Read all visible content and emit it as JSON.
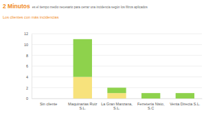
{
  "chart_data": {
    "type": "bar",
    "stacked": true,
    "grid": true,
    "annotations": [
      "2 Minutos",
      "es el tiempo medio necesario para cerrar una incidencia según los filtros aplicados"
    ],
    "title": "Los clientes con más incidencias",
    "categories": [
      "Sin cliente",
      "Maquinarias Ruiz S.L.",
      "La Gran Manzana, S.L.",
      "Ferretería Nisio, S.C",
      "Venta Directa S.L."
    ],
    "series": [
      {
        "color": "#f7e27c",
        "values": [
          0,
          4,
          1,
          0,
          0
        ]
      },
      {
        "color": "#8ed24c",
        "values": [
          0,
          7,
          1,
          1,
          1
        ]
      }
    ],
    "ylim": [
      0,
      12
    ],
    "yticks": [
      0,
      2,
      4,
      6,
      8,
      10,
      12
    ]
  }
}
